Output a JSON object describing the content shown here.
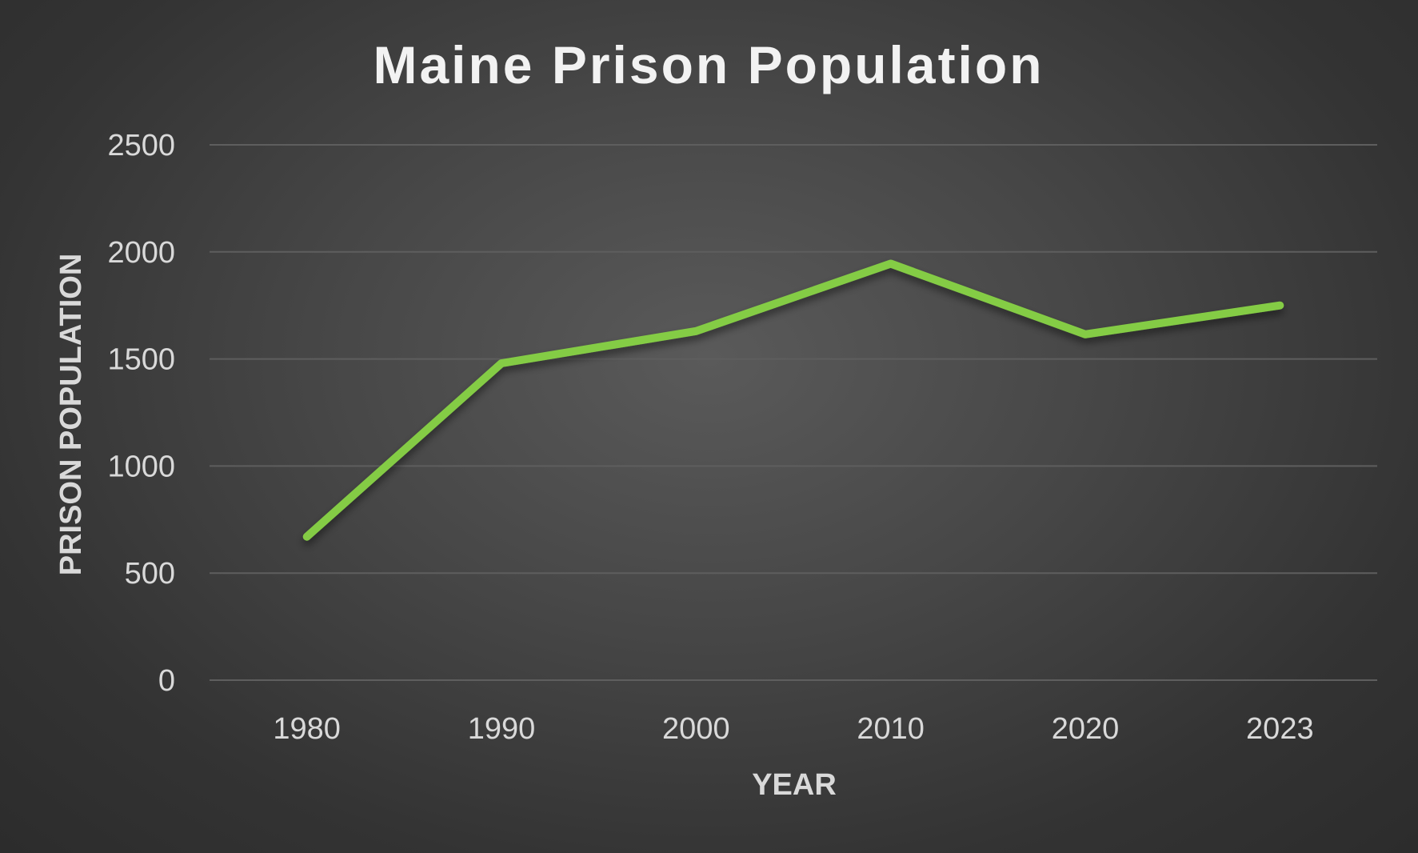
{
  "chart_data": {
    "type": "line",
    "title": "Maine Prison Population",
    "xlabel": "YEAR",
    "ylabel": "PRISON POPULATION",
    "categories": [
      "1980",
      "1990",
      "2000",
      "2010",
      "2020",
      "2023"
    ],
    "series": [
      {
        "values": [
          670,
          1480,
          1630,
          1945,
          1615,
          1750
        ]
      }
    ],
    "yticks": [
      "0",
      "500",
      "1000",
      "1500",
      "2000",
      "2500"
    ],
    "ylim": [
      0,
      2500
    ],
    "grid": true,
    "legend": "none"
  },
  "colors": {
    "line": "#84cc44",
    "background": "#3a3a3a"
  }
}
